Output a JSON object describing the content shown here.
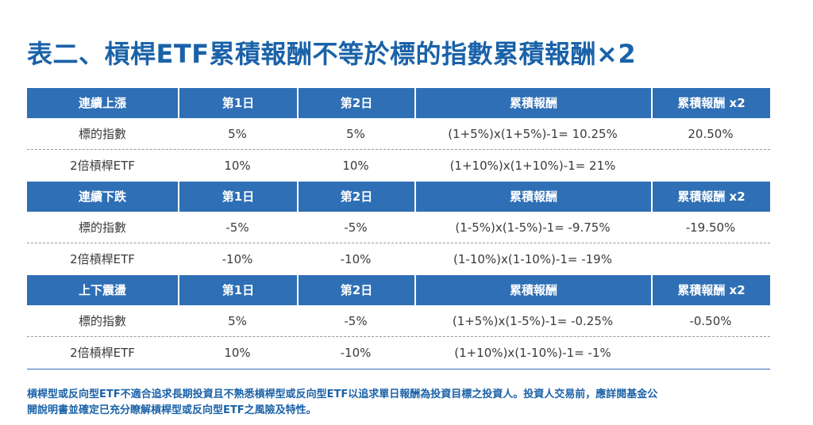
{
  "title": "表二、槓桿ETF累積報酬不等於標的指數累積報酬×2",
  "sections": [
    {
      "headers": [
        "連續上漲",
        "第1日",
        "第2日",
        "累積報酬",
        "累積報酬 x2"
      ],
      "rows": [
        [
          "標的指數",
          "5%",
          "5%",
          "(1+5%)x(1+5%)-1= 10.25%",
          "20.50%"
        ],
        [
          "2倍槓桿ETF",
          "10%",
          "10%",
          "(1+10%)x(1+10%)-1= 21%",
          ""
        ]
      ]
    },
    {
      "headers": [
        "連續下跌",
        "第1日",
        "第2日",
        "累積報酬",
        "累積報酬 x2"
      ],
      "rows": [
        [
          "標的指數",
          "-5%",
          "-5%",
          "(1-5%)x(1-5%)-1= -9.75%",
          "-19.50%"
        ],
        [
          "2倍槓桿ETF",
          "-10%",
          "-10%",
          "(1-10%)x(1-10%)-1= -19%",
          ""
        ]
      ]
    },
    {
      "headers": [
        "上下震盪",
        "第1日",
        "第2日",
        "累積報酬",
        "累積報酬 x2"
      ],
      "rows": [
        [
          "標的指數",
          "5%",
          "-5%",
          "(1+5%)x(1-5%)-1= -0.25%",
          "-0.50%"
        ],
        [
          "2倍槓桿ETF",
          "10%",
          "-10%",
          "(1+10%)x(1-10%)-1= -1%",
          ""
        ]
      ]
    }
  ],
  "footnote": {
    "line1": "槓桿型或反向型ETF不適合追求長期投資且不熟悉槓桿型或反向型ETF以追求單日報酬為投資目標之投資人。投資人交易前，應詳閱基金公",
    "line2": "開說明書並確定已充分瞭解槓桿型或反向型ETF之風險及特性。"
  },
  "colors": {
    "header_bg": "#2f6fb5",
    "title": "#1a62a8",
    "body_text": "#3a3a3a"
  }
}
